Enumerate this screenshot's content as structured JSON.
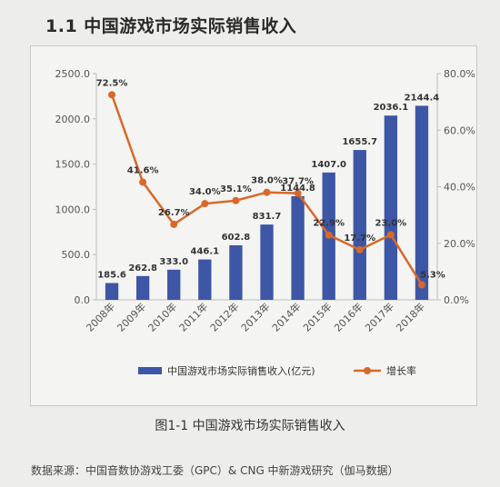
{
  "heading": "1.1  中国游戏市场实际销售收入",
  "caption": "图1-1  中国游戏市场实际销售收入",
  "source": "数据来源：中国音数协游戏工委（GPC）& CNG 中新游戏研究（伽马数据）",
  "colors": {
    "bar": "#3d56a6",
    "line": "#d8692a",
    "axis": "#bbbbbb"
  },
  "chart_data": {
    "type": "bar",
    "categories": [
      "2008年",
      "2009年",
      "2010年",
      "2011年",
      "2012年",
      "2013年",
      "2014年",
      "2015年",
      "2016年",
      "2017年",
      "2018年"
    ],
    "series": [
      {
        "name": "中国游戏市场实际销售收入(亿元)",
        "type": "bar",
        "axis": "left",
        "values": [
          185.6,
          262.8,
          333.0,
          446.1,
          602.8,
          831.7,
          1144.8,
          1407.0,
          1655.7,
          2036.1,
          2144.4
        ],
        "labels": [
          "185.6",
          "262.8",
          "333.0",
          "446.1",
          "602.8",
          "831.7",
          "1144.8",
          "1407.0",
          "1655.7",
          "2036.1",
          "2144.4"
        ]
      },
      {
        "name": "增长率",
        "type": "line",
        "axis": "right",
        "values": [
          72.5,
          41.6,
          26.7,
          34.0,
          35.1,
          38.0,
          37.7,
          22.9,
          17.7,
          23.0,
          5.3
        ],
        "labels": [
          "72.5%",
          "41.6%",
          "26.7%",
          "34.0%",
          "35.1%",
          "38.0%",
          "37.7%",
          "22.9%",
          "17.7%",
          "23.0%",
          "5.3%"
        ]
      }
    ],
    "y_left": {
      "ticks": [
        "0.0",
        "500.0",
        "1000.0",
        "1500.0",
        "2000.0",
        "2500.0"
      ],
      "ylim": [
        0,
        2500
      ]
    },
    "y_right": {
      "ticks": [
        "0.0%",
        "20.0%",
        "40.0%",
        "60.0%",
        "80.0%"
      ],
      "ylim": [
        0,
        80
      ]
    },
    "grid": false,
    "legend": "bottom"
  }
}
